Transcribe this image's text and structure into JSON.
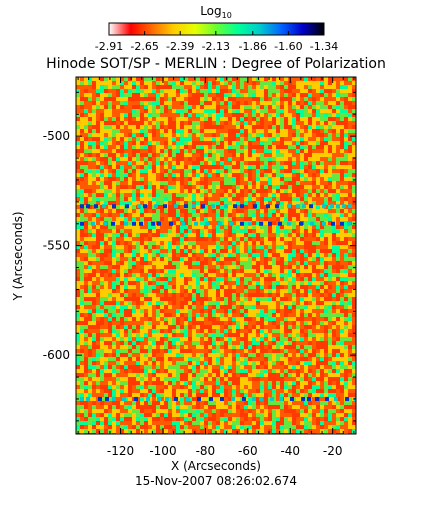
{
  "chart_data": {
    "type": "heatmap",
    "title": "Hinode SOT/SP - MERLIN : Degree of Polarization",
    "xlabel": "X (Arcseconds)",
    "ylabel": "Y (Arcseconds)",
    "timestamp": "15-Nov-2007 08:26:02.674",
    "xlim": [
      -141,
      -9
    ],
    "ylim": [
      -636,
      -473
    ],
    "x_ticks": [
      -120,
      -100,
      -80,
      -60,
      -40,
      -20
    ],
    "y_ticks": [
      -500,
      -550,
      -600
    ],
    "colorbar": {
      "label": "Log",
      "label_subscript": "10",
      "min": -2.91,
      "max": -1.34,
      "tick_values": [
        -2.91,
        -2.65,
        -2.39,
        -2.13,
        -1.86,
        -1.6,
        -1.34
      ],
      "tick_labels": [
        "-2.91",
        "-2.65",
        "-2.39",
        "-2.13",
        "-1.86",
        "-1.60",
        "-1.34"
      ],
      "colormap": [
        "#ffffff",
        "#ff0000",
        "#ff6a00",
        "#ffcc00",
        "#e6ff00",
        "#66ff33",
        "#00ff99",
        "#00cccc",
        "#0066ff",
        "#0000cc",
        "#000000"
      ]
    },
    "high_polarization_rows_y": [
      -532,
      -540,
      -620
    ],
    "colors": {
      "background": "#f07800",
      "dominant": "#ff3a00",
      "speckle_light": "#ffcc00",
      "speckle_green": "#66e640",
      "strong_blue": "#0033cc"
    }
  }
}
